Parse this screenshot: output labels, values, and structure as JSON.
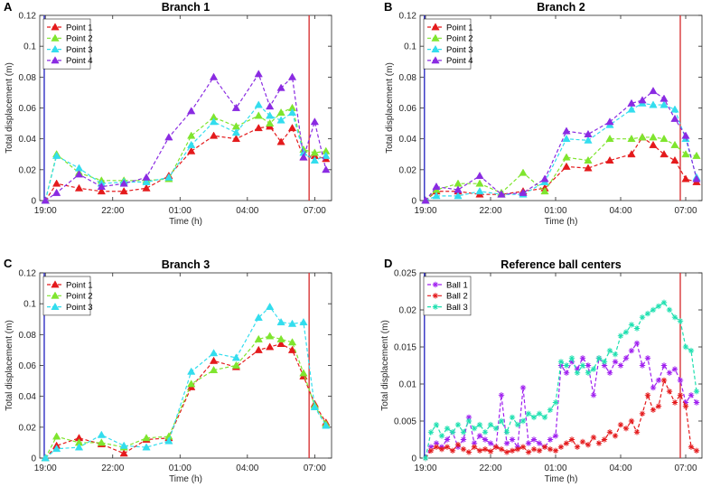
{
  "chart_data": [
    {
      "panel_label": "A",
      "type": "line",
      "title": "Branch 1",
      "xlabel": "Time (h)",
      "ylabel": "Total displacement (m)",
      "x_ticks": [
        "19:00",
        "22:00",
        "01:00",
        "04:00",
        "07:00"
      ],
      "x_tick_hours": [
        19,
        22,
        25,
        28,
        31
      ],
      "x_range_hours": [
        18.75,
        31.75
      ],
      "ylim": [
        0,
        0.12
      ],
      "y_ticks": [
        "0",
        "0.02",
        "0.04",
        "0.06",
        "0.08",
        "0.1",
        "0.12"
      ],
      "marker": "triangle",
      "legend_position": "top-left",
      "vlines": [
        {
          "hour": 18.95,
          "color": "#1f1fbf"
        },
        {
          "hour": 30.75,
          "color": "#d62728"
        }
      ],
      "x_hours": [
        19.0,
        19.5,
        20.5,
        21.5,
        22.5,
        23.5,
        24.5,
        25.5,
        26.5,
        27.5,
        28.5,
        29.0,
        29.5,
        30.0,
        30.5,
        31.0,
        31.5
      ],
      "series": [
        {
          "name": "Point 1",
          "color": "#e41a1c",
          "values": [
            0.0,
            0.011,
            0.008,
            0.006,
            0.006,
            0.008,
            0.016,
            0.032,
            0.042,
            0.04,
            0.047,
            0.048,
            0.038,
            0.047,
            0.028,
            0.029,
            0.027
          ]
        },
        {
          "name": "Point 2",
          "color": "#7fe52e",
          "values": [
            0.0,
            0.03,
            0.018,
            0.013,
            0.013,
            0.013,
            0.014,
            0.042,
            0.054,
            0.048,
            0.055,
            0.05,
            0.057,
            0.06,
            0.033,
            0.031,
            0.032
          ]
        },
        {
          "name": "Point 3",
          "color": "#33ddee",
          "values": [
            0.0,
            0.029,
            0.021,
            0.011,
            0.012,
            0.012,
            0.015,
            0.036,
            0.051,
            0.044,
            0.062,
            0.055,
            0.052,
            0.057,
            0.031,
            0.026,
            0.029
          ]
        },
        {
          "name": "Point 4",
          "color": "#8a2be2",
          "values": [
            0.0,
            0.005,
            0.017,
            0.009,
            0.011,
            0.015,
            0.041,
            0.058,
            0.08,
            0.06,
            0.082,
            0.061,
            0.073,
            0.08,
            0.028,
            0.051,
            0.02
          ]
        }
      ]
    },
    {
      "panel_label": "B",
      "type": "line",
      "title": "Branch 2",
      "xlabel": "Time (h)",
      "ylabel": "Total displacement (m)",
      "x_ticks": [
        "19:00",
        "22:00",
        "01:00",
        "04:00",
        "07:00"
      ],
      "x_tick_hours": [
        19,
        22,
        25,
        28,
        31
      ],
      "x_range_hours": [
        18.75,
        31.75
      ],
      "ylim": [
        0,
        0.12
      ],
      "y_ticks": [
        "0",
        "0.02",
        "0.04",
        "0.06",
        "0.08",
        "0.1",
        "0.12"
      ],
      "marker": "triangle",
      "legend_position": "top-left",
      "vlines": [
        {
          "hour": 18.95,
          "color": "#1f1fbf"
        },
        {
          "hour": 30.75,
          "color": "#d62728"
        }
      ],
      "x_hours": [
        19.0,
        19.5,
        20.5,
        21.5,
        22.5,
        23.5,
        24.5,
        25.5,
        26.5,
        27.5,
        28.5,
        29.0,
        29.5,
        30.0,
        30.5,
        31.0,
        31.5
      ],
      "series": [
        {
          "name": "Point 1",
          "color": "#e41a1c",
          "values": [
            0.0,
            0.006,
            0.006,
            0.004,
            0.004,
            0.006,
            0.008,
            0.022,
            0.021,
            0.026,
            0.03,
            0.041,
            0.036,
            0.03,
            0.026,
            0.014,
            0.012
          ]
        },
        {
          "name": "Point 2",
          "color": "#7fe52e",
          "values": [
            0.0,
            0.007,
            0.011,
            0.011,
            0.005,
            0.018,
            0.006,
            0.028,
            0.026,
            0.04,
            0.04,
            0.041,
            0.041,
            0.04,
            0.036,
            0.03,
            0.029
          ]
        },
        {
          "name": "Point 3",
          "color": "#33ddee",
          "values": [
            0.0,
            0.003,
            0.003,
            0.006,
            0.004,
            0.004,
            0.012,
            0.04,
            0.039,
            0.049,
            0.059,
            0.063,
            0.062,
            0.062,
            0.059,
            0.04,
            0.015
          ]
        },
        {
          "name": "Point 4",
          "color": "#8a2be2",
          "values": [
            0.0,
            0.009,
            0.007,
            0.016,
            0.004,
            0.005,
            0.014,
            0.045,
            0.043,
            0.051,
            0.063,
            0.065,
            0.071,
            0.066,
            0.053,
            0.042,
            0.014
          ]
        }
      ]
    },
    {
      "panel_label": "C",
      "type": "line",
      "title": "Branch 3",
      "xlabel": "Time (h)",
      "ylabel": "Total displacement (m)",
      "x_ticks": [
        "19:00",
        "22:00",
        "01:00",
        "04:00",
        "07:00"
      ],
      "x_tick_hours": [
        19,
        22,
        25,
        28,
        31
      ],
      "x_range_hours": [
        18.75,
        31.75
      ],
      "ylim": [
        0,
        0.12
      ],
      "y_ticks": [
        "0",
        "0.02",
        "0.04",
        "0.06",
        "0.08",
        "0.1",
        "0.12"
      ],
      "marker": "triangle",
      "legend_position": "top-left",
      "vlines": [
        {
          "hour": 18.95,
          "color": "#1f1fbf"
        },
        {
          "hour": 30.75,
          "color": "#d62728"
        }
      ],
      "x_hours": [
        19.0,
        19.5,
        20.5,
        21.5,
        22.5,
        23.5,
        24.5,
        25.5,
        26.5,
        27.5,
        28.5,
        29.0,
        29.5,
        30.0,
        30.5,
        31.0,
        31.5
      ],
      "series": [
        {
          "name": "Point 1",
          "color": "#e41a1c",
          "values": [
            0.0,
            0.008,
            0.013,
            0.009,
            0.003,
            0.012,
            0.013,
            0.046,
            0.063,
            0.059,
            0.07,
            0.072,
            0.074,
            0.07,
            0.053,
            0.035,
            0.023
          ]
        },
        {
          "name": "Point 2",
          "color": "#7fe52e",
          "values": [
            0.0,
            0.014,
            0.01,
            0.01,
            0.007,
            0.013,
            0.014,
            0.048,
            0.057,
            0.06,
            0.077,
            0.079,
            0.077,
            0.075,
            0.055,
            0.034,
            0.022
          ]
        },
        {
          "name": "Point 3",
          "color": "#33ddee",
          "values": [
            0.0,
            0.006,
            0.007,
            0.015,
            0.008,
            0.007,
            0.011,
            0.056,
            0.068,
            0.065,
            0.091,
            0.098,
            0.088,
            0.087,
            0.088,
            0.033,
            0.021
          ]
        }
      ]
    },
    {
      "panel_label": "D",
      "type": "line",
      "title": "Reference ball centers",
      "xlabel": "Time (h)",
      "ylabel": "Total displacement (m)",
      "x_ticks": [
        "19:00",
        "22:00",
        "01:00",
        "04:00",
        "07:00"
      ],
      "x_tick_hours": [
        19,
        22,
        25,
        28,
        31
      ],
      "x_range_hours": [
        18.75,
        31.75
      ],
      "ylim": [
        0,
        0.025
      ],
      "y_ticks": [
        "0",
        "0.005",
        "0.01",
        "0.015",
        "0.02",
        "0.025"
      ],
      "marker": "asterisk",
      "legend_position": "top-left",
      "vlines": [
        {
          "hour": 18.95,
          "color": "#1f1fbf"
        },
        {
          "hour": 30.75,
          "color": "#d62728"
        }
      ],
      "x_hours": [
        19.0,
        19.25,
        19.5,
        19.75,
        20.0,
        20.25,
        20.5,
        20.75,
        21.0,
        21.25,
        21.5,
        21.75,
        22.0,
        22.25,
        22.5,
        22.75,
        23.0,
        23.25,
        23.5,
        23.75,
        24.0,
        24.25,
        24.5,
        24.75,
        25.0,
        25.25,
        25.5,
        25.75,
        26.0,
        26.25,
        26.5,
        26.75,
        27.0,
        27.25,
        27.5,
        27.75,
        28.0,
        28.25,
        28.5,
        28.75,
        29.0,
        29.25,
        29.5,
        29.75,
        30.0,
        30.25,
        30.5,
        30.75,
        31.0,
        31.25,
        31.5
      ],
      "series": [
        {
          "name": "Ball 1",
          "color": "#a020f0",
          "values": [
            0.0,
            0.0015,
            0.002,
            0.0015,
            0.0025,
            0.0035,
            0.0015,
            0.0025,
            0.0055,
            0.002,
            0.003,
            0.0025,
            0.002,
            0.0015,
            0.0085,
            0.002,
            0.0025,
            0.0015,
            0.0095,
            0.002,
            0.0025,
            0.002,
            0.0015,
            0.0025,
            0.003,
            0.0125,
            0.0115,
            0.013,
            0.012,
            0.0135,
            0.0125,
            0.0085,
            0.0135,
            0.0125,
            0.0115,
            0.013,
            0.0125,
            0.0135,
            0.0145,
            0.0155,
            0.0125,
            0.0135,
            0.0095,
            0.0105,
            0.0125,
            0.0115,
            0.012,
            0.0105,
            0.0075,
            0.0085,
            0.0075
          ]
        },
        {
          "name": "Ball 2",
          "color": "#e41a1c",
          "values": [
            0.0,
            0.001,
            0.0015,
            0.0012,
            0.0015,
            0.001,
            0.0018,
            0.0012,
            0.0008,
            0.0015,
            0.001,
            0.0012,
            0.0009,
            0.0015,
            0.0012,
            0.0008,
            0.001,
            0.0012,
            0.0015,
            0.0008,
            0.0012,
            0.001,
            0.0015,
            0.0012,
            0.001,
            0.0015,
            0.002,
            0.0025,
            0.0015,
            0.0022,
            0.0018,
            0.0028,
            0.002,
            0.0025,
            0.0035,
            0.003,
            0.0045,
            0.004,
            0.005,
            0.0035,
            0.006,
            0.0085,
            0.0065,
            0.007,
            0.0105,
            0.009,
            0.0075,
            0.0085,
            0.007,
            0.0015,
            0.001
          ]
        },
        {
          "name": "Ball 3",
          "color": "#1fe0b0",
          "values": [
            0.0,
            0.0035,
            0.0045,
            0.003,
            0.004,
            0.0035,
            0.0045,
            0.0035,
            0.005,
            0.004,
            0.0045,
            0.0035,
            0.0045,
            0.004,
            0.005,
            0.0035,
            0.0055,
            0.0045,
            0.005,
            0.006,
            0.0055,
            0.006,
            0.0055,
            0.0065,
            0.0075,
            0.013,
            0.0125,
            0.0135,
            0.0115,
            0.0125,
            0.0115,
            0.012,
            0.0135,
            0.013,
            0.0145,
            0.014,
            0.0165,
            0.017,
            0.018,
            0.0175,
            0.019,
            0.0195,
            0.02,
            0.0205,
            0.021,
            0.02,
            0.019,
            0.0185,
            0.015,
            0.0145,
            0.009
          ]
        }
      ]
    }
  ]
}
